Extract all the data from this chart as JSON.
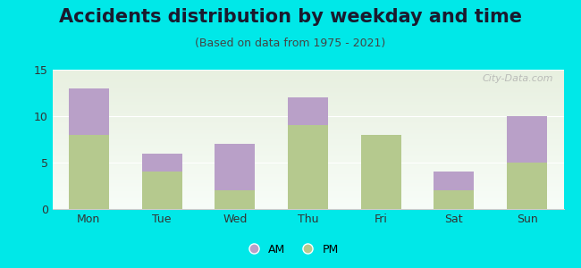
{
  "title": "Accidents distribution by weekday and time",
  "subtitle": "(Based on data from 1975 - 2021)",
  "categories": [
    "Mon",
    "Tue",
    "Wed",
    "Thu",
    "Fri",
    "Sat",
    "Sun"
  ],
  "pm_values": [
    8,
    4,
    2,
    9,
    8,
    2,
    5
  ],
  "am_values": [
    5,
    2,
    5,
    3,
    0,
    2,
    5
  ],
  "pm_color": "#b5c98e",
  "am_color": "#b9a0c8",
  "background_color": "#00e8e8",
  "gradient_top": "#e8f0e0",
  "gradient_bottom": "#f8fdf8",
  "ylim": [
    0,
    15
  ],
  "yticks": [
    0,
    5,
    10,
    15
  ],
  "watermark": "City-Data.com",
  "legend_am": "AM",
  "legend_pm": "PM",
  "bar_width": 0.55,
  "title_fontsize": 15,
  "subtitle_fontsize": 9,
  "tick_fontsize": 9,
  "legend_fontsize": 9
}
